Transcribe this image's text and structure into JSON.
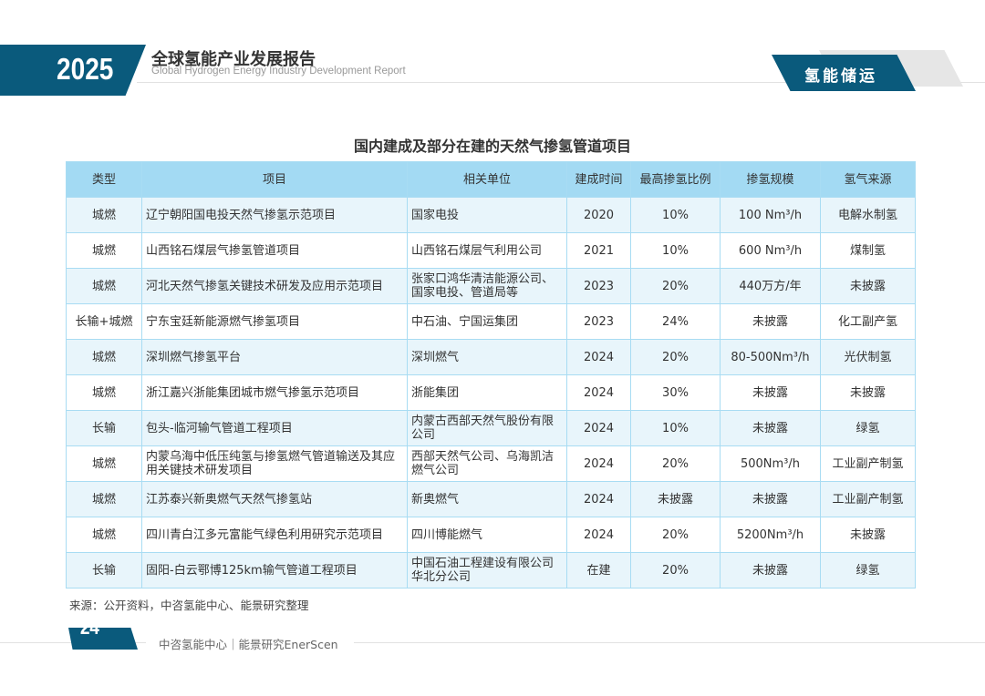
{
  "header": {
    "year": "2025",
    "title_cn": "全球氢能产业发展报告",
    "title_en": "Global Hydrogen Energy Industry Development Report",
    "section": "氢能储运"
  },
  "colors": {
    "brand": "#0a5a7c",
    "table_header": "#a3daf3",
    "row_alt": "#e8f5fb"
  },
  "table": {
    "caption": "国内建成及部分在建的天然气掺氢管道项目",
    "columns": [
      "类型",
      "项目",
      "相关单位",
      "建成时间",
      "最高掺氢比例",
      "掺氢规模",
      "氢气来源"
    ],
    "rows": [
      [
        "城燃",
        "辽宁朝阳国电投天然气掺氢示范项目",
        "国家电投",
        "2020",
        "10%",
        "100 Nm³/h",
        "电解水制氢"
      ],
      [
        "城燃",
        "山西铭石煤层气掺氢管道项目",
        "山西铭石煤层气利用公司",
        "2021",
        "10%",
        "600 Nm³/h",
        "煤制氢"
      ],
      [
        "城燃",
        "河北天然气掺氢关键技术研发及应用示范项目",
        "张家口鸿华清洁能源公司、国家电投、管道局等",
        "2023",
        "20%",
        "440万方/年",
        "未披露"
      ],
      [
        "长输+城燃",
        "宁东宝廷新能源燃气掺氢项目",
        "中石油、宁国运集团",
        "2023",
        "24%",
        "未披露",
        "化工副产氢"
      ],
      [
        "城燃",
        "深圳燃气掺氢平台",
        "深圳燃气",
        "2024",
        "20%",
        "80-500Nm³/h",
        "光伏制氢"
      ],
      [
        "城燃",
        "浙江嘉兴浙能集团城市燃气掺氢示范项目",
        "浙能集团",
        "2024",
        "30%",
        "未披露",
        "未披露"
      ],
      [
        "长输",
        "包头-临河输气管道工程项目",
        "内蒙古西部天然气股份有限公司",
        "2024",
        "10%",
        "未披露",
        "绿氢"
      ],
      [
        "城燃",
        "内蒙乌海中低压纯氢与掺氢燃气管道输送及其应用关键技术研发项目",
        "西部天然气公司、乌海凯洁燃气公司",
        "2024",
        "20%",
        "500Nm³/h",
        "工业副产制氢"
      ],
      [
        "城燃",
        "江苏泰兴新奥燃气天然气掺氢站",
        "新奥燃气",
        "2024",
        "未披露",
        "未披露",
        "工业副产制氢"
      ],
      [
        "城燃",
        "四川青白江多元富能气绿色利用研究示范项目",
        "四川博能燃气",
        "2024",
        "20%",
        "5200Nm³/h",
        "未披露"
      ],
      [
        "长输",
        "固阳-白云鄂博125km输气管道工程项目",
        "中国石油工程建设有限公司华北分公司",
        "在建",
        "20%",
        "未披露",
        "绿氢"
      ]
    ]
  },
  "footer": {
    "source": "来源：公开资料，中咨氢能中心、能景研究整理",
    "page": "24",
    "org": "中咨氢能中心｜能景研究EnerScen"
  }
}
